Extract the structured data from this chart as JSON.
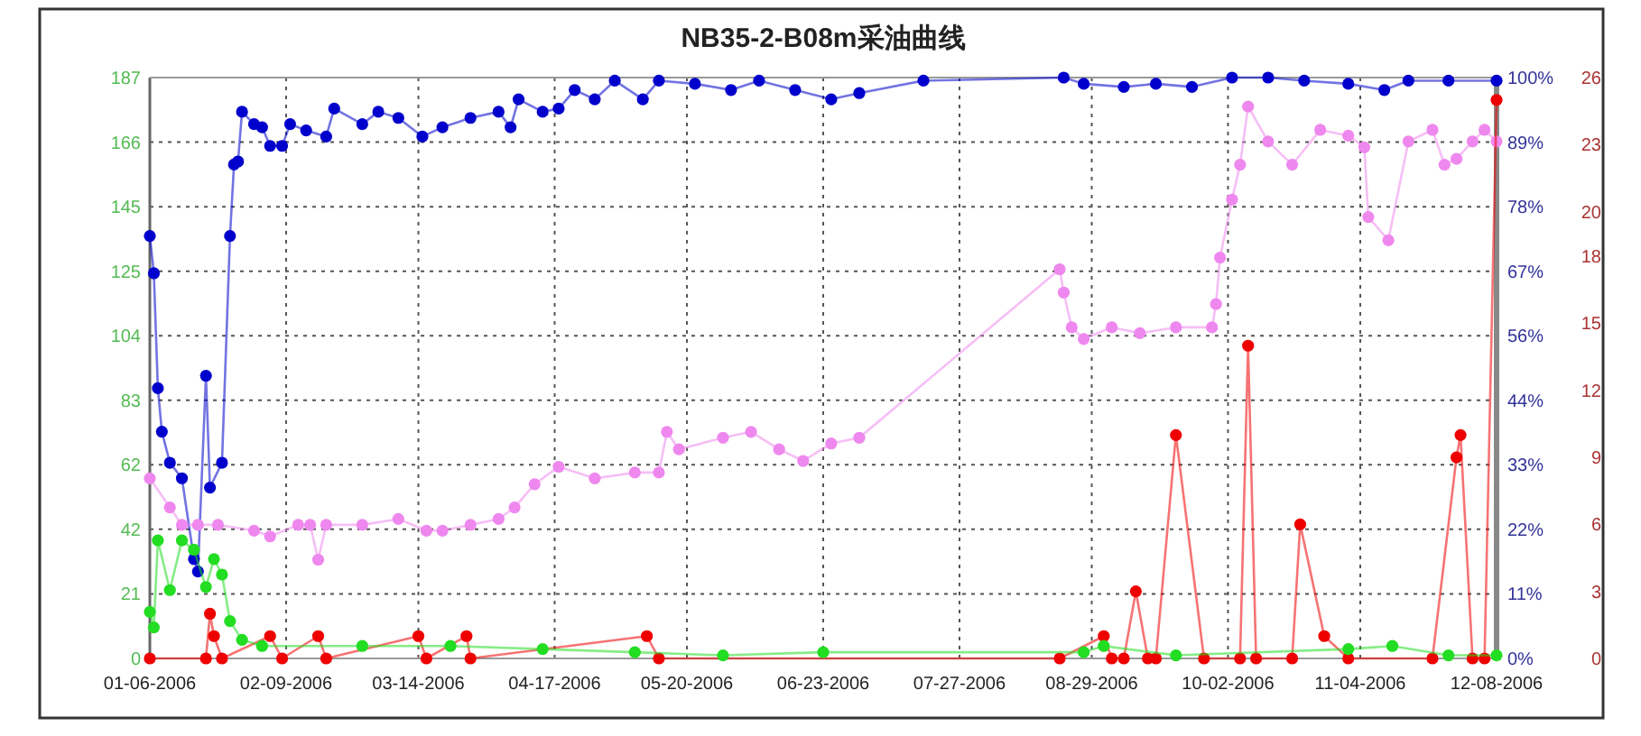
{
  "chart_data": {
    "type": "line",
    "title": "NB35-2-B08m采油曲线",
    "xlim": [
      "2006-01-06",
      "2006-12-08"
    ],
    "xticks": [
      {
        "value": "2006-01-06",
        "label": "01-06-2006"
      },
      {
        "value": "2006-02-09",
        "label": "02-09-2006"
      },
      {
        "value": "2006-03-14",
        "label": "03-14-2006"
      },
      {
        "value": "2006-04-17",
        "label": "04-17-2006"
      },
      {
        "value": "2006-05-20",
        "label": "05-20-2006"
      },
      {
        "value": "2006-06-23",
        "label": "06-23-2006"
      },
      {
        "value": "2006-07-27",
        "label": "07-27-2006"
      },
      {
        "value": "2006-08-29",
        "label": "08-29-2006"
      },
      {
        "value": "2006-10-02",
        "label": "10-02-2006"
      },
      {
        "value": "2006-11-04",
        "label": "11-04-2006"
      },
      {
        "value": "2006-12-08",
        "label": "12-08-2006"
      }
    ],
    "ylim": [
      0,
      187
    ],
    "yticks": [
      0,
      {
        "value": 20.78,
        "label": "21"
      },
      {
        "value": 41.56,
        "label": "42"
      },
      {
        "value": 62.33,
        "label": "62"
      },
      {
        "value": 83.11,
        "label": "83"
      },
      {
        "value": 103.89,
        "label": "104"
      },
      {
        "value": 124.67,
        "label": "125"
      },
      {
        "value": 145.44,
        "label": "145"
      },
      {
        "value": 166.22,
        "label": "166"
      },
      187
    ],
    "y2lim": [
      0,
      100
    ],
    "y2ticks": [
      {
        "value": 0,
        "label": "0%"
      },
      {
        "value": 11.11,
        "label": "11%"
      },
      {
        "value": 22.22,
        "label": "22%"
      },
      {
        "value": 33.33,
        "label": "33%"
      },
      {
        "value": 44.44,
        "label": "44%"
      },
      {
        "value": 55.56,
        "label": "56%"
      },
      {
        "value": 66.67,
        "label": "67%"
      },
      {
        "value": 77.78,
        "label": "78%"
      },
      {
        "value": 88.89,
        "label": "89%"
      },
      {
        "value": 100,
        "label": "100%"
      }
    ],
    "y3lim": [
      0,
      26
    ],
    "y3ticks": [
      0,
      3,
      6,
      9,
      12,
      15,
      18,
      20,
      23,
      26
    ],
    "grid": true,
    "marker": "circle",
    "line_style": "solid",
    "series": [
      {
        "color": "#0000cc",
        "x": [
          "2006-01-06",
          "2006-01-07",
          "2006-01-08",
          "2006-01-09",
          "2006-01-11",
          "2006-01-14",
          "2006-01-17",
          "2006-01-18",
          "2006-01-20",
          "2006-01-21",
          "2006-01-24",
          "2006-01-26",
          "2006-01-27",
          "2006-01-28",
          "2006-01-29",
          "2006-02-01",
          "2006-02-03",
          "2006-02-05",
          "2006-02-08",
          "2006-02-10",
          "2006-02-14",
          "2006-02-19",
          "2006-02-21",
          "2006-02-28",
          "2006-03-04",
          "2006-03-09",
          "2006-03-15",
          "2006-03-20",
          "2006-03-27",
          "2006-04-03",
          "2006-04-06",
          "2006-04-08",
          "2006-04-14",
          "2006-04-18",
          "2006-04-22",
          "2006-04-27",
          "2006-05-02",
          "2006-05-09",
          "2006-05-13",
          "2006-05-22",
          "2006-05-31",
          "2006-06-07",
          "2006-06-16",
          "2006-06-25",
          "2006-07-02",
          "2006-07-18",
          "2006-08-22",
          "2006-08-27",
          "2006-09-06",
          "2006-09-14",
          "2006-09-23",
          "2006-10-03",
          "2006-10-12",
          "2006-10-21",
          "2006-11-01",
          "2006-11-10",
          "2006-11-16",
          "2006-11-26",
          "2006-12-08"
        ],
        "values": [
          136,
          124,
          87,
          73,
          63,
          58,
          32,
          28,
          91,
          55,
          63,
          136,
          159,
          160,
          176,
          172,
          171,
          165,
          165,
          172,
          170,
          168,
          177,
          172,
          176,
          174,
          168,
          171,
          174,
          176,
          171,
          180,
          176,
          177,
          183,
          180,
          186,
          180,
          186,
          185,
          183,
          186,
          183,
          180,
          182,
          186,
          187,
          185,
          184,
          185,
          184,
          187,
          187,
          186,
          185,
          183,
          186,
          186,
          186
        ]
      },
      {
        "color": "#ee88ee",
        "axis": "y2",
        "x": [
          "2006-01-06",
          "2006-01-11",
          "2006-01-14",
          "2006-01-18",
          "2006-01-23",
          "2006-02-01",
          "2006-02-05",
          "2006-02-12",
          "2006-02-15",
          "2006-02-17",
          "2006-02-19",
          "2006-02-28",
          "2006-03-09",
          "2006-03-16",
          "2006-03-20",
          "2006-03-27",
          "2006-04-03",
          "2006-04-07",
          "2006-04-12",
          "2006-04-18",
          "2006-04-27",
          "2006-05-07",
          "2006-05-13",
          "2006-05-15",
          "2006-05-18",
          "2006-05-29",
          "2006-06-05",
          "2006-06-12",
          "2006-06-18",
          "2006-06-25",
          "2006-07-02",
          "2006-08-21",
          "2006-08-22",
          "2006-08-24",
          "2006-08-27",
          "2006-09-03",
          "2006-09-10",
          "2006-09-19",
          "2006-09-28",
          "2006-09-29",
          "2006-09-30",
          "2006-10-03",
          "2006-10-05",
          "2006-10-07",
          "2006-10-12",
          "2006-10-18",
          "2006-10-25",
          "2006-11-01",
          "2006-11-05",
          "2006-11-06",
          "2006-11-11",
          "2006-11-16",
          "2006-11-22",
          "2006-11-25",
          "2006-11-28",
          "2006-12-02",
          "2006-12-05",
          "2006-12-08"
        ],
        "values": [
          31,
          26,
          23,
          23,
          23,
          22,
          21,
          23,
          23,
          17,
          23,
          23,
          24,
          22,
          22,
          23,
          24,
          26,
          30,
          33,
          31,
          32,
          32,
          39,
          36,
          38,
          39,
          36,
          34,
          37,
          38,
          67,
          63,
          57,
          55,
          57,
          56,
          57,
          57,
          61,
          69,
          79,
          85,
          95,
          89,
          85,
          91,
          90,
          88,
          76,
          72,
          89,
          91,
          85,
          86,
          89,
          91,
          89
        ]
      },
      {
        "color": "#ee0000",
        "axis": "y3",
        "x": [
          "2006-01-06",
          "2006-01-20",
          "2006-01-21",
          "2006-01-22",
          "2006-01-24",
          "2006-02-05",
          "2006-02-08",
          "2006-02-17",
          "2006-02-19",
          "2006-03-14",
          "2006-03-16",
          "2006-03-26",
          "2006-03-27",
          "2006-05-10",
          "2006-05-13",
          "2006-08-21",
          "2006-09-01",
          "2006-09-03",
          "2006-09-06",
          "2006-09-09",
          "2006-09-12",
          "2006-09-14",
          "2006-09-19",
          "2006-09-26",
          "2006-10-05",
          "2006-10-07",
          "2006-10-09",
          "2006-10-18",
          "2006-10-20",
          "2006-10-26",
          "2006-11-01",
          "2006-11-22",
          "2006-11-28",
          "2006-11-29",
          "2006-12-02",
          "2006-12-05",
          "2006-12-08"
        ],
        "values": [
          0,
          0,
          2,
          1,
          0,
          1,
          0,
          1,
          0,
          1,
          0,
          1,
          0,
          1,
          0,
          0,
          1,
          0,
          0,
          3,
          0,
          0,
          10,
          0,
          0,
          14,
          0,
          0,
          6,
          1,
          0,
          0,
          9,
          10,
          0,
          0,
          25
        ]
      },
      {
        "color": "#22dd22",
        "x": [
          "2006-01-06",
          "2006-01-07",
          "2006-01-08",
          "2006-01-11",
          "2006-01-14",
          "2006-01-17",
          "2006-01-20",
          "2006-01-22",
          "2006-01-24",
          "2006-01-26",
          "2006-01-29",
          "2006-02-03",
          "2006-02-28",
          "2006-03-22",
          "2006-04-14",
          "2006-05-07",
          "2006-05-29",
          "2006-06-23",
          "2006-08-27",
          "2006-09-01",
          "2006-09-19",
          "2006-11-01",
          "2006-11-12",
          "2006-11-26",
          "2006-12-08"
        ],
        "values": [
          15,
          10,
          38,
          22,
          38,
          35,
          23,
          32,
          27,
          12,
          6,
          4,
          4,
          4,
          3,
          2,
          1,
          2,
          2,
          4,
          1,
          3,
          4,
          1,
          1
        ]
      }
    ]
  }
}
